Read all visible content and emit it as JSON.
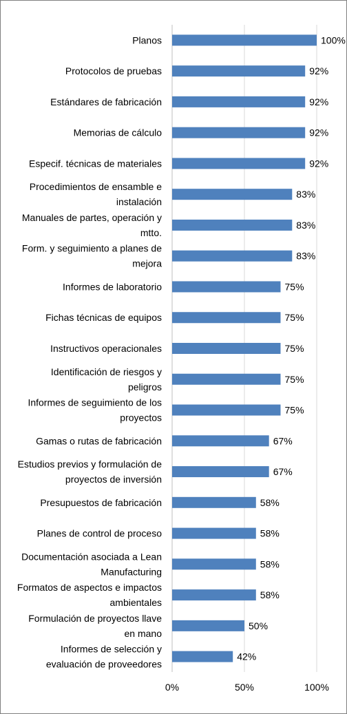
{
  "colors": {
    "bar": "#4f81bd",
    "grid": "#d9d9d9",
    "border": "#7f7f7f",
    "text": "#000000"
  },
  "chart_data": {
    "type": "bar",
    "orientation": "horizontal",
    "title": "",
    "xlabel": "",
    "ylabel": "",
    "grid": true,
    "legend": "none",
    "xlim": [
      0,
      100
    ],
    "x_ticks": [
      "0%",
      "50%",
      "100%"
    ],
    "categories": [
      [
        "Planos"
      ],
      [
        "Protocolos de pruebas"
      ],
      [
        "Estándares de fabricación"
      ],
      [
        "Memorias de cálculo"
      ],
      [
        "Especif. técnicas de materiales"
      ],
      [
        "Procedimientos de ensamble e",
        "instalación"
      ],
      [
        "Manuales de partes, operación y",
        "mtto."
      ],
      [
        "Form. y seguimiento a planes de",
        "mejora"
      ],
      [
        "Informes de laboratorio"
      ],
      [
        "Fichas técnicas de equipos"
      ],
      [
        "Instructivos operacionales"
      ],
      [
        "Identificación de riesgos y",
        "peligros"
      ],
      [
        "Informes de seguimiento de los",
        "proyectos"
      ],
      [
        "Gamas o rutas de fabricación"
      ],
      [
        "Estudios previos y formulación de",
        "proyectos de inversión"
      ],
      [
        "Presupuestos de fabricación"
      ],
      [
        "Planes de control de proceso"
      ],
      [
        "Documentación asociada a Lean",
        "Manufacturing"
      ],
      [
        "Formatos de aspectos e impactos",
        "ambientales"
      ],
      [
        "Formulación de proyectos llave",
        "en mano"
      ],
      [
        "Informes de selección y",
        "evaluación de proveedores"
      ]
    ],
    "values": [
      100,
      92,
      92,
      92,
      92,
      83,
      83,
      83,
      75,
      75,
      75,
      75,
      75,
      67,
      67,
      58,
      58,
      58,
      58,
      50,
      42
    ],
    "value_labels": [
      "100%",
      "92%",
      "92%",
      "92%",
      "92%",
      "83%",
      "83%",
      "83%",
      "75%",
      "75%",
      "75%",
      "75%",
      "75%",
      "67%",
      "67%",
      "58%",
      "58%",
      "58%",
      "58%",
      "50%",
      "42%"
    ]
  }
}
